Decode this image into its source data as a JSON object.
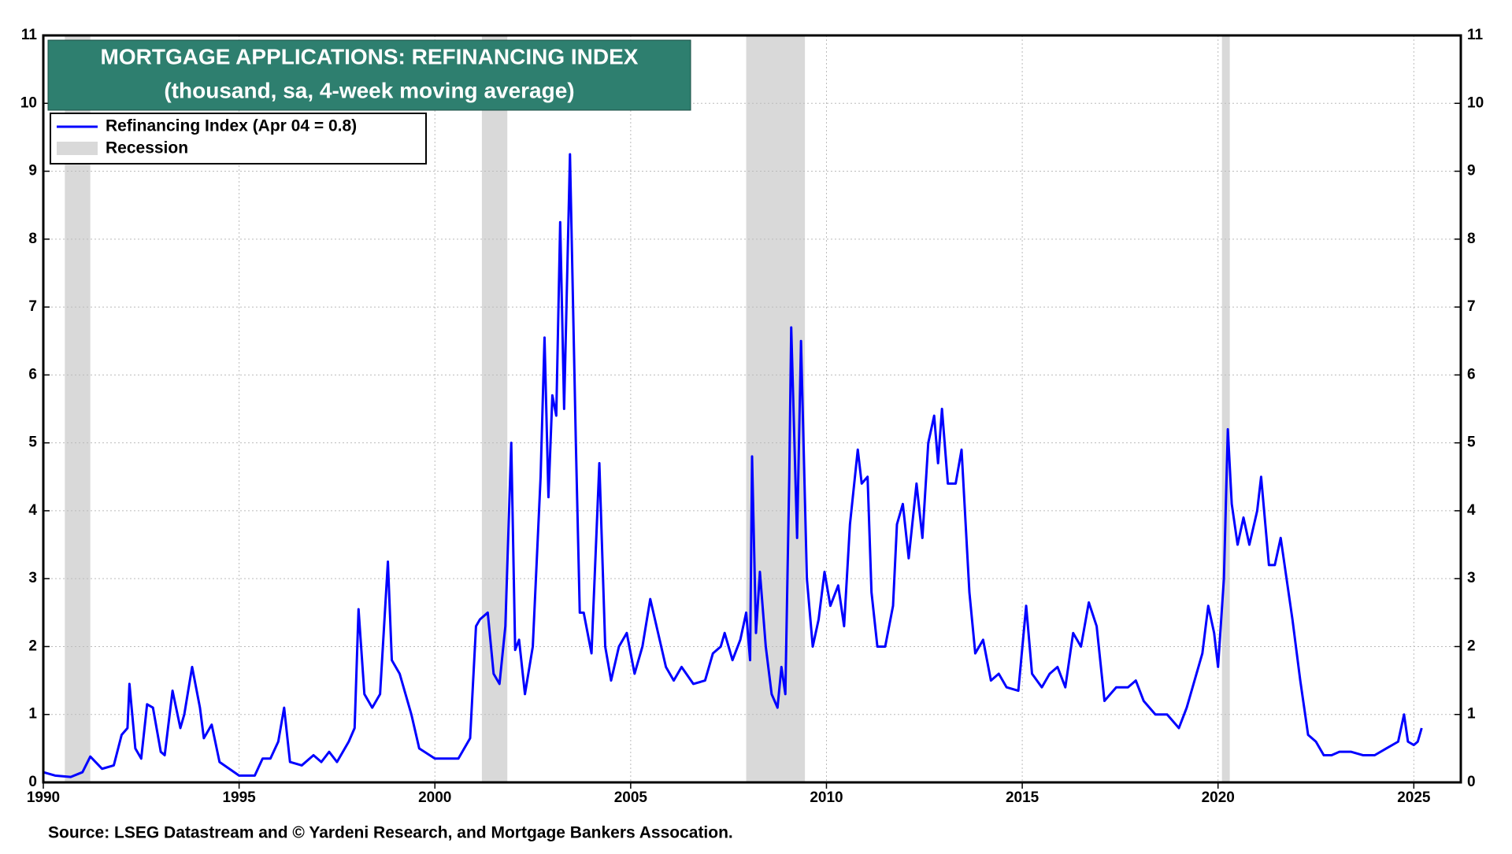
{
  "chart_data": {
    "type": "line",
    "title": "MORTGAGE APPLICATIONS: REFINANCING INDEX",
    "subtitle": "(thousand, sa, 4-week moving average)",
    "source": "Source: LSEG Datastream and © Yardeni Research, and Mortgage Bankers Assocation.",
    "xlim": [
      1990,
      2026.2
    ],
    "xticks": [
      1990,
      1995,
      2000,
      2005,
      2010,
      2015,
      2020,
      2025
    ],
    "ylim": [
      0,
      11
    ],
    "yticks": [
      0,
      1,
      2,
      3,
      4,
      5,
      6,
      7,
      8,
      9,
      10,
      11
    ],
    "y2lim": [
      0,
      11
    ],
    "y2ticks": [
      0,
      1,
      2,
      3,
      4,
      5,
      6,
      7,
      8,
      9,
      10,
      11
    ],
    "grid": true,
    "legend": "upper left",
    "recession_name": "Recession",
    "recession_color": "#d9d9d9",
    "recessions": [
      [
        1990.55,
        1991.2
      ],
      [
        2001.2,
        2001.85
      ],
      [
        2007.95,
        2009.45
      ],
      [
        2020.1,
        2020.3
      ]
    ],
    "x": [
      1990.0,
      1990.3,
      1990.7,
      1991.0,
      1991.2,
      1991.5,
      1991.8,
      1992.0,
      1992.15,
      1992.2,
      1992.35,
      1992.5,
      1992.65,
      1992.8,
      1993.0,
      1993.1,
      1993.3,
      1993.5,
      1993.6,
      1993.8,
      1994.0,
      1994.1,
      1994.3,
      1994.5,
      1995.0,
      1995.4,
      1995.6,
      1995.8,
      1996.0,
      1996.15,
      1996.3,
      1996.6,
      1996.9,
      1997.1,
      1997.3,
      1997.5,
      1997.8,
      1997.95,
      1998.05,
      1998.2,
      1998.4,
      1998.6,
      1998.8,
      1998.9,
      1999.1,
      1999.4,
      1999.6,
      2000.0,
      2000.3,
      2000.6,
      2000.9,
      2001.05,
      2001.15,
      2001.35,
      2001.5,
      2001.65,
      2001.8,
      2001.95,
      2002.05,
      2002.15,
      2002.3,
      2002.5,
      2002.7,
      2002.8,
      2002.9,
      2003.0,
      2003.1,
      2003.2,
      2003.3,
      2003.45,
      2003.6,
      2003.7,
      2003.8,
      2004.0,
      2004.2,
      2004.35,
      2004.5,
      2004.7,
      2004.9,
      2005.1,
      2005.3,
      2005.5,
      2005.7,
      2005.9,
      2006.1,
      2006.3,
      2006.6,
      2006.9,
      2007.1,
      2007.3,
      2007.4,
      2007.6,
      2007.8,
      2007.95,
      2008.05,
      2008.1,
      2008.2,
      2008.3,
      2008.45,
      2008.6,
      2008.75,
      2008.85,
      2008.95,
      2009.05,
      2009.1,
      2009.25,
      2009.35,
      2009.5,
      2009.65,
      2009.8,
      2009.95,
      2010.1,
      2010.3,
      2010.45,
      2010.6,
      2010.8,
      2010.9,
      2011.05,
      2011.15,
      2011.3,
      2011.5,
      2011.7,
      2011.8,
      2011.95,
      2012.1,
      2012.3,
      2012.45,
      2012.6,
      2012.75,
      2012.85,
      2012.95,
      2013.1,
      2013.3,
      2013.45,
      2013.65,
      2013.8,
      2014.0,
      2014.2,
      2014.4,
      2014.6,
      2014.9,
      2015.1,
      2015.25,
      2015.5,
      2015.7,
      2015.9,
      2016.1,
      2016.3,
      2016.5,
      2016.7,
      2016.9,
      2017.1,
      2017.4,
      2017.7,
      2017.9,
      2018.1,
      2018.4,
      2018.7,
      2019.0,
      2019.2,
      2019.4,
      2019.6,
      2019.75,
      2019.9,
      2020.0,
      2020.15,
      2020.25,
      2020.35,
      2020.5,
      2020.65,
      2020.8,
      2021.0,
      2021.1,
      2021.3,
      2021.45,
      2021.6,
      2021.75,
      2021.9,
      2022.1,
      2022.3,
      2022.5,
      2022.7,
      2022.9,
      2023.1,
      2023.4,
      2023.7,
      2024.0,
      2024.3,
      2024.6,
      2024.75,
      2024.85,
      2025.0,
      2025.1,
      2025.2
    ],
    "series": [
      {
        "name": "Refinancing Index (Apr 04 = 0.8)",
        "color": "#0000ff",
        "values": [
          0.15,
          0.1,
          0.08,
          0.15,
          0.38,
          0.2,
          0.25,
          0.7,
          0.8,
          1.45,
          0.5,
          0.35,
          1.15,
          1.1,
          0.45,
          0.4,
          1.35,
          0.8,
          1.0,
          1.7,
          1.1,
          0.65,
          0.85,
          0.3,
          0.1,
          0.1,
          0.35,
          0.35,
          0.6,
          1.1,
          0.3,
          0.25,
          0.4,
          0.3,
          0.45,
          0.3,
          0.6,
          0.8,
          2.55,
          1.3,
          1.1,
          1.3,
          3.25,
          1.8,
          1.6,
          1.0,
          0.5,
          0.35,
          0.35,
          0.35,
          0.65,
          2.3,
          2.4,
          2.5,
          1.6,
          1.45,
          2.3,
          5.0,
          1.95,
          2.1,
          1.3,
          2.0,
          4.5,
          6.55,
          4.2,
          5.7,
          5.4,
          8.25,
          5.5,
          9.25,
          5.0,
          2.5,
          2.5,
          1.9,
          4.7,
          2.0,
          1.5,
          2.0,
          2.2,
          1.6,
          2.0,
          2.7,
          2.2,
          1.7,
          1.5,
          1.7,
          1.45,
          1.5,
          1.9,
          2.0,
          2.2,
          1.8,
          2.1,
          2.5,
          1.8,
          4.8,
          2.2,
          3.1,
          2.0,
          1.3,
          1.1,
          1.7,
          1.3,
          4.5,
          6.7,
          3.6,
          6.5,
          3.0,
          2.0,
          2.4,
          3.1,
          2.6,
          2.9,
          2.3,
          3.8,
          4.9,
          4.4,
          4.5,
          2.8,
          2.0,
          2.0,
          2.6,
          3.8,
          4.1,
          3.3,
          4.4,
          3.6,
          5.0,
          5.4,
          4.7,
          5.5,
          4.4,
          4.4,
          4.9,
          2.8,
          1.9,
          2.1,
          1.5,
          1.6,
          1.4,
          1.35,
          2.6,
          1.6,
          1.4,
          1.6,
          1.7,
          1.4,
          2.2,
          2.0,
          2.65,
          2.3,
          1.2,
          1.4,
          1.4,
          1.5,
          1.2,
          1.0,
          1.0,
          0.8,
          1.1,
          1.5,
          1.9,
          2.6,
          2.2,
          1.7,
          3.0,
          5.2,
          4.1,
          3.5,
          3.9,
          3.5,
          4.0,
          4.5,
          3.2,
          3.2,
          3.6,
          3.0,
          2.4,
          1.5,
          0.7,
          0.6,
          0.4,
          0.4,
          0.45,
          0.45,
          0.4,
          0.4,
          0.5,
          0.6,
          1.0,
          0.6,
          0.55,
          0.6,
          0.8
        ]
      }
    ]
  }
}
